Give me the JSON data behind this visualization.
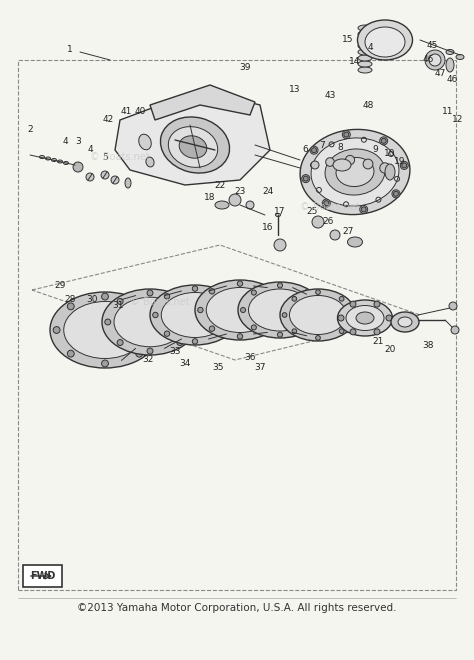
{
  "bg_color": "#f5f5f0",
  "border_color": "#cccccc",
  "title_text": "",
  "footer_text": "©2013 Yamaha Motor Corporation, U.S.A. All rights reserved.",
  "footer_fontsize": 7.5,
  "watermark_text": "© Boats.net",
  "diagram_border_color": "#999999",
  "line_color": "#333333",
  "fwd_label": "FWD",
  "part_numbers": [
    "1",
    "2",
    "3",
    "4",
    "4",
    "5",
    "6",
    "7",
    "8",
    "9",
    "10",
    "11",
    "12",
    "13",
    "14",
    "15",
    "16",
    "17",
    "18",
    "19",
    "20",
    "21",
    "22",
    "23",
    "24",
    "25",
    "26",
    "27",
    "28",
    "29",
    "30",
    "31",
    "32",
    "33",
    "34",
    "35",
    "36",
    "37",
    "38",
    "39",
    "40",
    "41",
    "42",
    "43",
    "45",
    "46",
    "46",
    "47",
    "48"
  ],
  "fig_width": 4.74,
  "fig_height": 6.6,
  "dpi": 100
}
